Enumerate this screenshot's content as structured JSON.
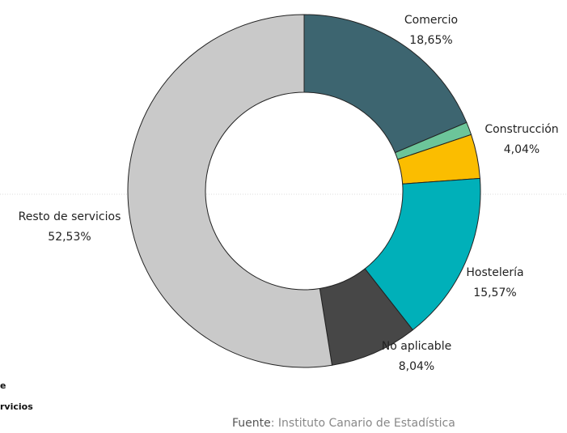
{
  "chart_data": {
    "type": "pie",
    "categories": [
      "Comercio",
      null,
      "Construcción",
      "Hostelería",
      "No aplicable",
      "Resto de servicios"
    ],
    "values": [
      18.65,
      1.17,
      4.04,
      15.57,
      8.04,
      52.53
    ],
    "value_labels": [
      "18,65%",
      null,
      "4,04%",
      "15,57%",
      "8,04%",
      "52,53%"
    ],
    "colors": [
      "#3d6570",
      "#6cc59a",
      "#fbbd00",
      "#00b0b9",
      "#474747",
      "#c9c9c9"
    ],
    "source_label": "Fuente",
    "source_text": ": Instituto Canario de Estadística",
    "legend_fragments": [
      "e",
      "rvicios"
    ]
  }
}
